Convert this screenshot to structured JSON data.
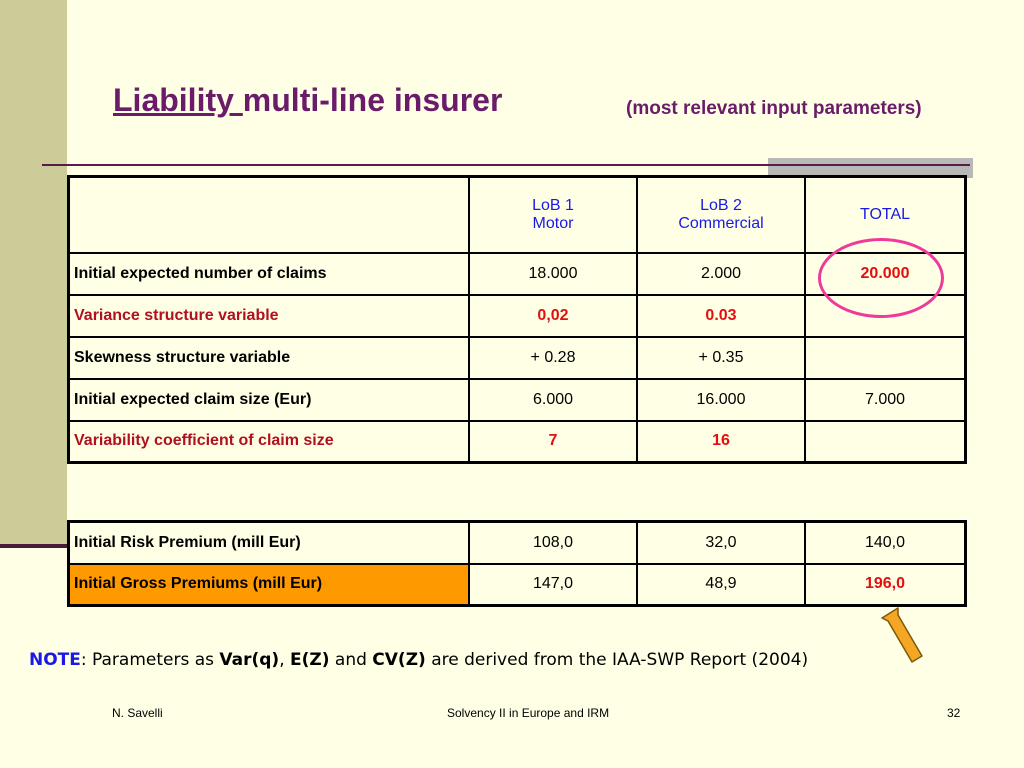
{
  "title": {
    "underlined": "Liability ",
    "rest": "multi-line insurer"
  },
  "subtitle": "(most relevant input parameters)",
  "main_table": {
    "headers": [
      {
        "line1": "LoB 1",
        "line2": "Motor"
      },
      {
        "line1": "LoB 2",
        "line2": "Commercial"
      },
      {
        "line1": "TOTAL",
        "line2": ""
      }
    ],
    "rows": [
      {
        "label": "Initial expected number of claims",
        "values": [
          "18.000",
          "2.000",
          "20.000"
        ]
      },
      {
        "label": "Variance  structure variable",
        "values": [
          "0,02",
          "0.03",
          ""
        ]
      },
      {
        "label": "Skewness structure variable",
        "values": [
          "+ 0.28",
          "+ 0.35",
          ""
        ]
      },
      {
        "label": "Initial expected claim size (Eur)",
        "values": [
          "6.000",
          "16.000",
          "7.000"
        ]
      },
      {
        "label": "Variability coefficient of claim size",
        "values": [
          "7",
          "16",
          ""
        ]
      }
    ]
  },
  "premium_table": {
    "rows": [
      {
        "label": "Initial Risk Premium (mill Eur)",
        "values": [
          "108,0",
          "32,0",
          "140,0"
        ]
      },
      {
        "label": "Initial Gross Premiums (mill Eur)",
        "values": [
          "147,0",
          "48,9",
          "196,0"
        ]
      }
    ]
  },
  "note": {
    "label": "NOTE",
    "t1": ": Parameters as ",
    "var": "Var(q)",
    "t2": ", ",
    "ez": "E(Z)",
    "t3": " and ",
    "cv": "CV(Z)",
    "t4": " are derived from the IAA-SWP Report (2004)"
  },
  "footer": {
    "author": "N. Savelli",
    "center": "Solvency II in Europe and IRM",
    "page": "32"
  },
  "colors": {
    "accent": "#6A1B6A",
    "header_text": "#1A1AE6",
    "highlight_text": "#E01010",
    "highlight_fill": "#FF9900",
    "circle": "#EE3A9A"
  }
}
